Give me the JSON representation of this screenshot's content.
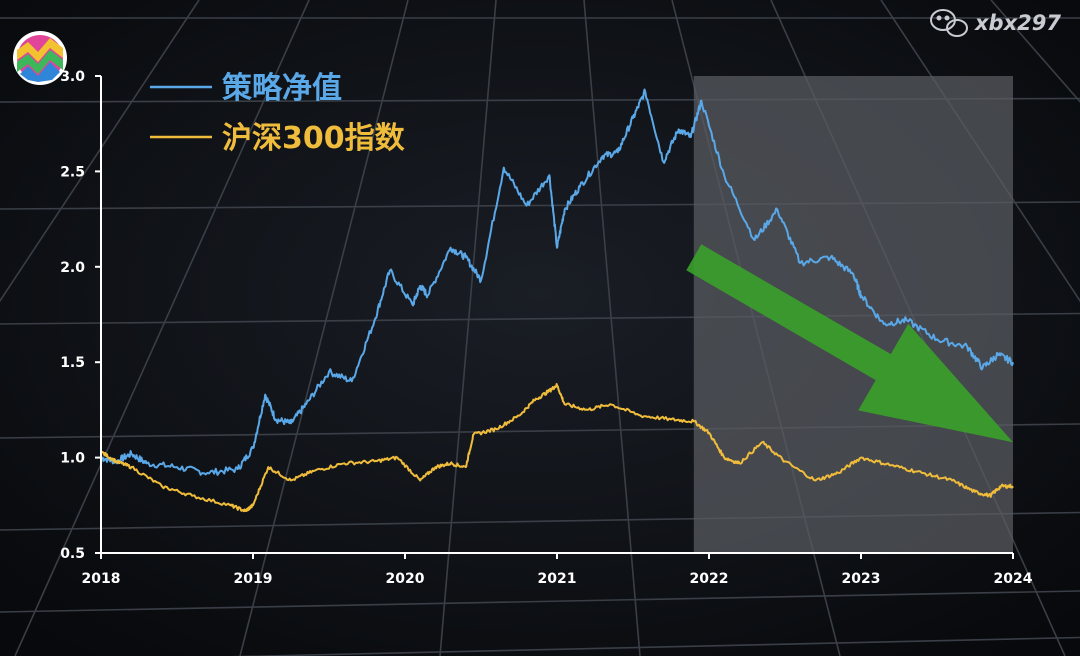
{
  "watermark": {
    "text": "xbx297",
    "icon": "wechat-icon"
  },
  "chart_data": {
    "type": "line",
    "title": "",
    "xlabel": "",
    "ylabel": "",
    "x_ticks": [
      "2018",
      "2019",
      "2020",
      "2021",
      "2022",
      "2023",
      "2024"
    ],
    "y_ticks": [
      "0.5",
      "1.0",
      "1.5",
      "2.0",
      "2.5",
      "3.0"
    ],
    "xlim": [
      2018.0,
      2024.0
    ],
    "ylim": [
      0.5,
      3.0
    ],
    "grid": false,
    "legend_position": "top-left",
    "highlight_region": {
      "x_start": 2021.9,
      "x_end": 2024.0,
      "color": "#5a5d63"
    },
    "trend_arrow": {
      "direction": "down",
      "color": "#3aa12a",
      "from": [
        2021.9,
        2.05
      ],
      "to": [
        2024.0,
        1.08
      ]
    },
    "series": [
      {
        "name": "策略净值",
        "color": "#5aa8e8",
        "x": [
          2018.0,
          2018.1,
          2018.2,
          2018.3,
          2018.5,
          2018.7,
          2018.9,
          2019.0,
          2019.08,
          2019.15,
          2019.25,
          2019.35,
          2019.5,
          2019.65,
          2019.8,
          2019.9,
          2020.05,
          2020.1,
          2020.15,
          2020.3,
          2020.4,
          2020.5,
          2020.65,
          2020.8,
          2020.95,
          2021.0,
          2021.05,
          2021.15,
          2021.3,
          2021.4,
          2021.5,
          2021.58,
          2021.7,
          2021.8,
          2021.88,
          2021.95,
          2022.1,
          2022.3,
          2022.45,
          2022.6,
          2022.8,
          2022.95,
          2023.0,
          2023.15,
          2023.3,
          2023.5,
          2023.7,
          2023.8,
          2023.9,
          2024.0
        ],
        "y": [
          1.0,
          0.98,
          1.02,
          0.97,
          0.95,
          0.92,
          0.94,
          1.05,
          1.33,
          1.2,
          1.18,
          1.28,
          1.45,
          1.4,
          1.72,
          1.98,
          1.8,
          1.9,
          1.85,
          2.1,
          2.05,
          1.93,
          2.52,
          2.32,
          2.48,
          2.1,
          2.3,
          2.42,
          2.58,
          2.6,
          2.78,
          2.92,
          2.55,
          2.72,
          2.68,
          2.87,
          2.48,
          2.14,
          2.3,
          2.02,
          2.05,
          1.96,
          1.85,
          1.7,
          1.72,
          1.62,
          1.58,
          1.47,
          1.54,
          1.5
        ]
      },
      {
        "name": "沪深300指数",
        "color": "#f0bc3b",
        "x": [
          2018.0,
          2018.1,
          2018.2,
          2018.4,
          2018.6,
          2018.85,
          2018.95,
          2019.0,
          2019.1,
          2019.25,
          2019.4,
          2019.6,
          2019.8,
          2019.95,
          2020.1,
          2020.2,
          2020.3,
          2020.4,
          2020.45,
          2020.6,
          2020.75,
          2020.85,
          2020.95,
          2021.0,
          2021.05,
          2021.2,
          2021.35,
          2021.55,
          2021.75,
          2021.9,
          2022.0,
          2022.1,
          2022.2,
          2022.35,
          2022.5,
          2022.7,
          2022.85,
          2023.0,
          2023.2,
          2023.4,
          2023.6,
          2023.75,
          2023.85,
          2023.92,
          2024.0
        ],
        "y": [
          1.03,
          0.98,
          0.95,
          0.85,
          0.8,
          0.75,
          0.72,
          0.75,
          0.95,
          0.88,
          0.93,
          0.97,
          0.98,
          1.0,
          0.88,
          0.95,
          0.97,
          0.95,
          1.12,
          1.15,
          1.22,
          1.3,
          1.35,
          1.38,
          1.28,
          1.25,
          1.28,
          1.22,
          1.2,
          1.19,
          1.13,
          1.0,
          0.97,
          1.08,
          0.98,
          0.88,
          0.92,
          1.0,
          0.96,
          0.92,
          0.88,
          0.82,
          0.8,
          0.85,
          0.85
        ]
      }
    ]
  }
}
